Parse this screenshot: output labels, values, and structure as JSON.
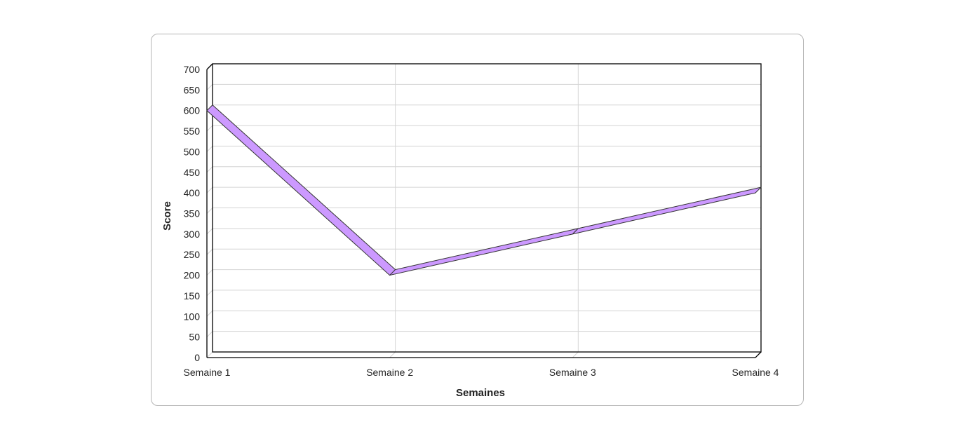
{
  "chart_data": {
    "type": "line",
    "title": "",
    "xlabel": "Semaines",
    "ylabel": "Score",
    "categories": [
      "Semaine 1",
      "Semaine 2",
      "Semaine 3",
      "Semaine 4"
    ],
    "series": [
      {
        "values": [
          600,
          200,
          300,
          400
        ],
        "color": "#cc99ff"
      }
    ],
    "ylim": [
      0,
      700
    ],
    "yticks": [
      0,
      50,
      100,
      150,
      200,
      250,
      300,
      350,
      400,
      450,
      500,
      550,
      600,
      650,
      700
    ],
    "grid": true,
    "style": "3d",
    "legend": "none",
    "colors": {
      "line_fill": "#cc99ff",
      "line_edge": "#333333",
      "grid": "#d4d4d4",
      "axis": "#000000"
    }
  }
}
